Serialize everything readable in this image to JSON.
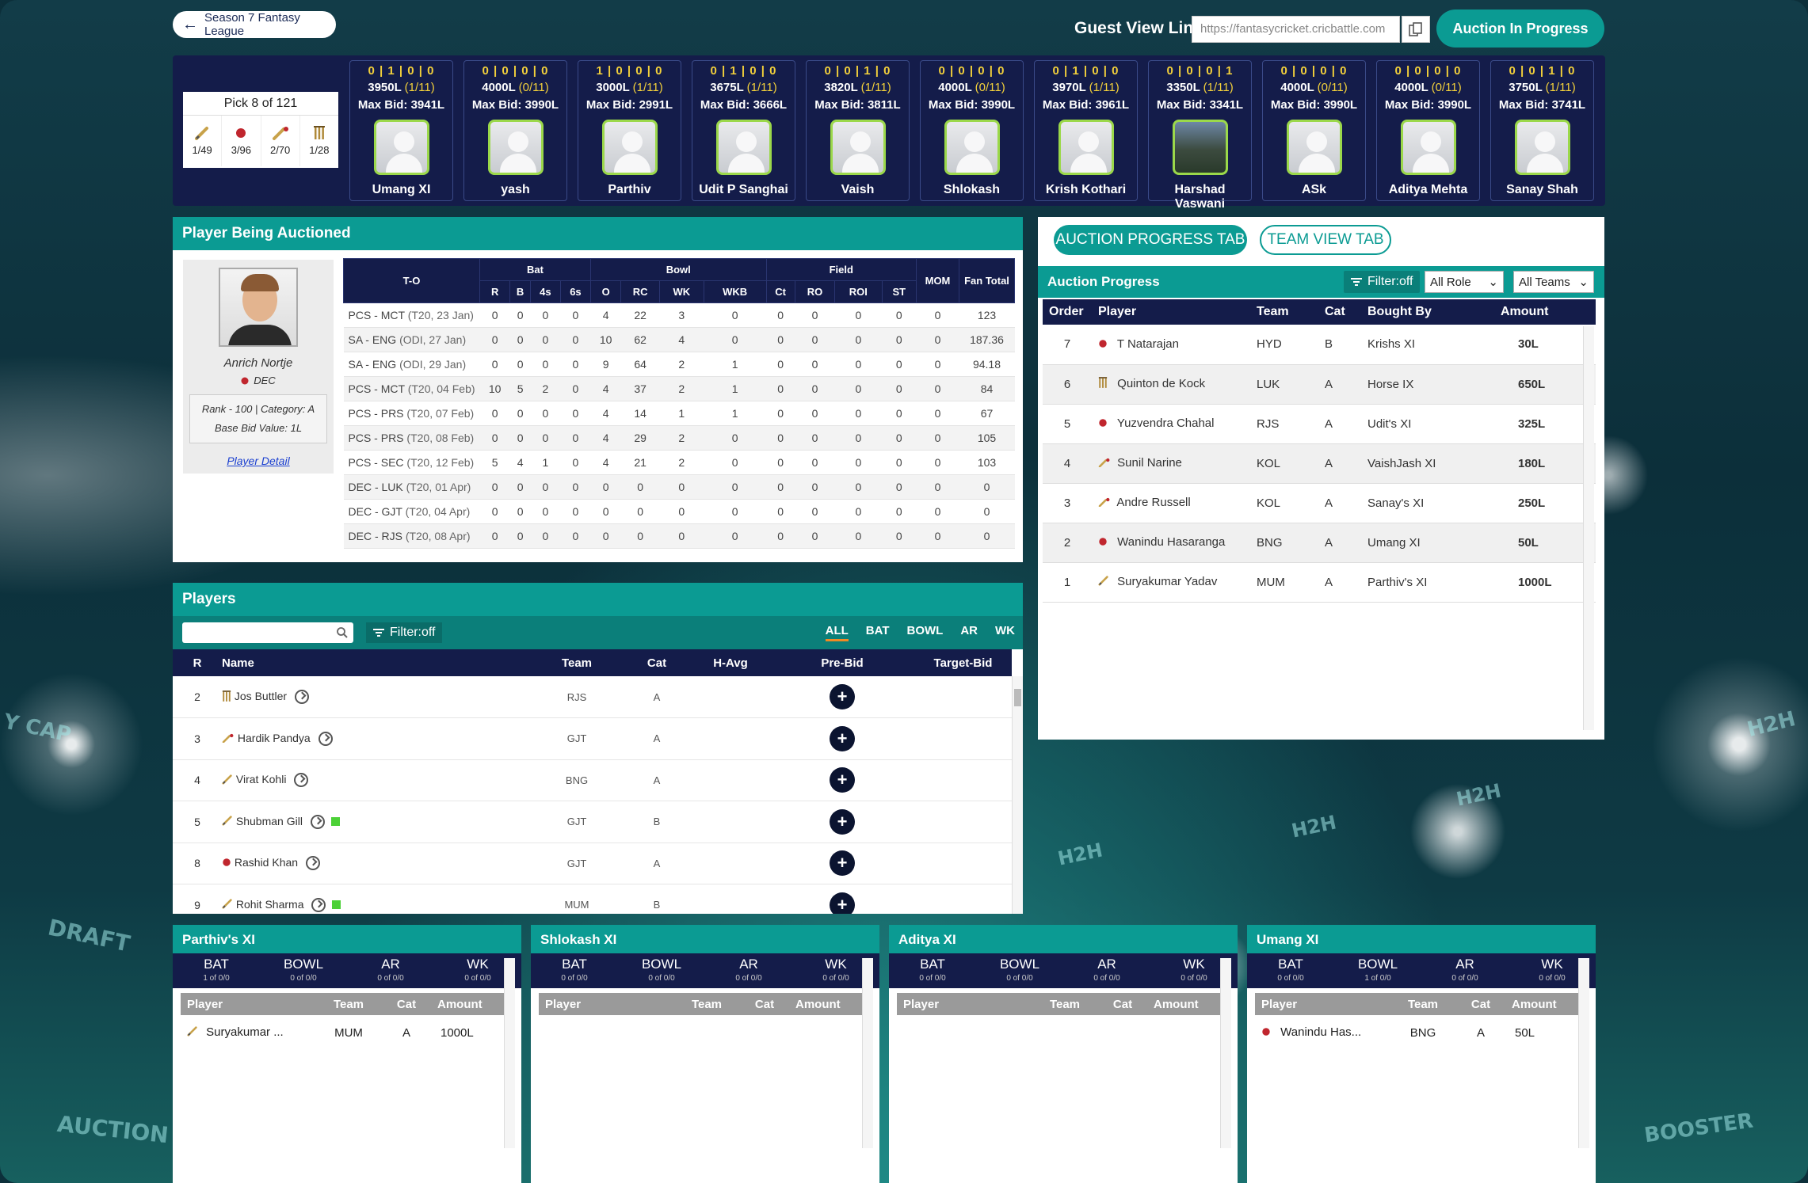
{
  "header": {
    "back_label": "Season 7 Fantasy League",
    "guest_label": "Guest View Link",
    "guest_link": "https://fantasycricket.cricbattle.com",
    "status_label": "Auction In Progress"
  },
  "pick": {
    "title": "Pick 8 of 121",
    "counts": [
      "1/49",
      "3/96",
      "2/70",
      "1/28"
    ]
  },
  "teams": [
    {
      "record": "0|1|0|0",
      "budget": "3950L",
      "slots": "(1/11)",
      "max_bid": "Max Bid: 3941L",
      "name": "Umang XI",
      "photo": false
    },
    {
      "record": "0|0|0|0",
      "budget": "4000L",
      "slots": "(0/11)",
      "max_bid": "Max Bid: 3990L",
      "name": "yash",
      "photo": false
    },
    {
      "record": "1|0|0|0",
      "budget": "3000L",
      "slots": "(1/11)",
      "max_bid": "Max Bid: 2991L",
      "name": "Parthiv",
      "photo": false
    },
    {
      "record": "0|1|0|0",
      "budget": "3675L",
      "slots": "(1/11)",
      "max_bid": "Max Bid: 3666L",
      "name": "Udit P Sanghai",
      "photo": false
    },
    {
      "record": "0|0|1|0",
      "budget": "3820L",
      "slots": "(1/11)",
      "max_bid": "Max Bid: 3811L",
      "name": "Vaish",
      "photo": false
    },
    {
      "record": "0|0|0|0",
      "budget": "4000L",
      "slots": "(0/11)",
      "max_bid": "Max Bid: 3990L",
      "name": "Shlokash",
      "photo": false
    },
    {
      "record": "0|1|0|0",
      "budget": "3970L",
      "slots": "(1/11)",
      "max_bid": "Max Bid: 3961L",
      "name": "Krish Kothari",
      "photo": false
    },
    {
      "record": "0|0|0|1",
      "budget": "3350L",
      "slots": "(1/11)",
      "max_bid": "Max Bid: 3341L",
      "name": "Harshad Vaswani",
      "photo": true
    },
    {
      "record": "0|0|0|0",
      "budget": "4000L",
      "slots": "(0/11)",
      "max_bid": "Max Bid: 3990L",
      "name": "ASk",
      "photo": false
    },
    {
      "record": "0|0|0|0",
      "budget": "4000L",
      "slots": "(0/11)",
      "max_bid": "Max Bid: 3990L",
      "name": "Aditya Mehta",
      "photo": false
    },
    {
      "record": "0|0|1|0",
      "budget": "3750L",
      "slots": "(1/11)",
      "max_bid": "Max Bid: 3741L",
      "name": "Sanay Shah",
      "photo": false
    }
  ],
  "auction_player": {
    "panel_title": "Player Being Auctioned",
    "name": "Anrich Nortje",
    "team": "DEC",
    "rank_line": "Rank - 100  |  Category: A",
    "base_bid": "Base Bid Value: 1L",
    "detail_link": "Player Detail"
  },
  "stats": {
    "headers": {
      "to": "T-O",
      "bat": "Bat",
      "bowl": "Bowl",
      "field": "Field",
      "mom": "MOM",
      "fan": "Fan Total"
    },
    "subheaders": [
      "R",
      "B",
      "4s",
      "6s",
      "O",
      "RC",
      "WK",
      "WKB",
      "Ct",
      "RO",
      "ROI",
      "ST"
    ],
    "rows": [
      {
        "match": "PCS - MCT",
        "detail": "(T20, 23 Jan)",
        "vals": [
          "0",
          "0",
          "0",
          "0",
          "4",
          "22",
          "3",
          "0",
          "0",
          "0",
          "0",
          "0",
          "0",
          "123"
        ]
      },
      {
        "match": "SA - ENG",
        "detail": "(ODI, 27 Jan)",
        "vals": [
          "0",
          "0",
          "0",
          "0",
          "10",
          "62",
          "4",
          "0",
          "0",
          "0",
          "0",
          "0",
          "0",
          "187.36"
        ]
      },
      {
        "match": "SA - ENG",
        "detail": "(ODI, 29 Jan)",
        "vals": [
          "0",
          "0",
          "0",
          "0",
          "9",
          "64",
          "2",
          "1",
          "0",
          "0",
          "0",
          "0",
          "0",
          "94.18"
        ]
      },
      {
        "match": "PCS - MCT",
        "detail": "(T20, 04 Feb)",
        "vals": [
          "10",
          "5",
          "2",
          "0",
          "4",
          "37",
          "2",
          "1",
          "0",
          "0",
          "0",
          "0",
          "0",
          "84"
        ]
      },
      {
        "match": "PCS - PRS",
        "detail": "(T20, 07 Feb)",
        "vals": [
          "0",
          "0",
          "0",
          "0",
          "4",
          "14",
          "1",
          "1",
          "0",
          "0",
          "0",
          "0",
          "0",
          "67"
        ]
      },
      {
        "match": "PCS - PRS",
        "detail": "(T20, 08 Feb)",
        "vals": [
          "0",
          "0",
          "0",
          "0",
          "4",
          "29",
          "2",
          "0",
          "0",
          "0",
          "0",
          "0",
          "0",
          "105"
        ]
      },
      {
        "match": "PCS - SEC",
        "detail": "(T20, 12 Feb)",
        "vals": [
          "5",
          "4",
          "1",
          "0",
          "4",
          "21",
          "2",
          "0",
          "0",
          "0",
          "0",
          "0",
          "0",
          "103"
        ]
      },
      {
        "match": "DEC - LUK",
        "detail": "(T20, 01 Apr)",
        "vals": [
          "0",
          "0",
          "0",
          "0",
          "0",
          "0",
          "0",
          "0",
          "0",
          "0",
          "0",
          "0",
          "0",
          "0"
        ]
      },
      {
        "match": "DEC - GJT",
        "detail": "(T20, 04 Apr)",
        "vals": [
          "0",
          "0",
          "0",
          "0",
          "0",
          "0",
          "0",
          "0",
          "0",
          "0",
          "0",
          "0",
          "0",
          "0"
        ]
      },
      {
        "match": "DEC - RJS",
        "detail": "(T20, 08 Apr)",
        "vals": [
          "0",
          "0",
          "0",
          "0",
          "0",
          "0",
          "0",
          "0",
          "0",
          "0",
          "0",
          "0",
          "0",
          "0"
        ]
      }
    ]
  },
  "progress": {
    "tab_progress": "AUCTION PROGRESS TAB",
    "tab_team": "TEAM VIEW TAB",
    "title": "Auction Progress",
    "filter": "Filter:off",
    "role_select": "All Role",
    "team_select": "All Teams",
    "headers": [
      "Order",
      "Player",
      "Team",
      "Cat",
      "Bought By",
      "Amount"
    ],
    "rows": [
      {
        "order": "7",
        "role": "bowl",
        "player": "T Natarajan",
        "team": "HYD",
        "cat": "B",
        "by": "Krishs XI",
        "amount": "30L"
      },
      {
        "order": "6",
        "role": "wk",
        "player": "Quinton de Kock",
        "team": "LUK",
        "cat": "A",
        "by": "Horse IX",
        "amount": "650L"
      },
      {
        "order": "5",
        "role": "bowl",
        "player": "Yuzvendra Chahal",
        "team": "RJS",
        "cat": "A",
        "by": "Udit's XI",
        "amount": "325L"
      },
      {
        "order": "4",
        "role": "ar",
        "player": "Sunil Narine",
        "team": "KOL",
        "cat": "A",
        "by": "VaishJash XI",
        "amount": "180L"
      },
      {
        "order": "3",
        "role": "ar",
        "player": "Andre Russell",
        "team": "KOL",
        "cat": "A",
        "by": "Sanay's XI",
        "amount": "250L"
      },
      {
        "order": "2",
        "role": "bowl",
        "player": "Wanindu Hasaranga",
        "team": "BNG",
        "cat": "A",
        "by": "Umang XI",
        "amount": "50L"
      },
      {
        "order": "1",
        "role": "bat",
        "player": "Suryakumar Yadav",
        "team": "MUM",
        "cat": "A",
        "by": "Parthiv's XI",
        "amount": "1000L"
      }
    ]
  },
  "players": {
    "title": "Players",
    "filter": "Filter:off",
    "roles": [
      "ALL",
      "BAT",
      "BOWL",
      "AR",
      "WK"
    ],
    "headers": [
      "R",
      "Name",
      "Team",
      "Cat",
      "H-Avg",
      "Pre-Bid",
      "Target-Bid"
    ],
    "rows": [
      {
        "rank": "2",
        "role": "wk",
        "name": "Jos Buttler",
        "team": "RJS",
        "cat": "A",
        "flag": false
      },
      {
        "rank": "3",
        "role": "ar",
        "name": "Hardik Pandya",
        "team": "GJT",
        "cat": "A",
        "flag": false
      },
      {
        "rank": "4",
        "role": "bat",
        "name": "Virat Kohli",
        "team": "BNG",
        "cat": "A",
        "flag": false
      },
      {
        "rank": "5",
        "role": "bat",
        "name": "Shubman Gill",
        "team": "GJT",
        "cat": "B",
        "flag": true
      },
      {
        "rank": "8",
        "role": "bowl",
        "name": "Rashid Khan",
        "team": "GJT",
        "cat": "A",
        "flag": false
      },
      {
        "rank": "9",
        "role": "bat",
        "name": "Rohit Sharma",
        "team": "MUM",
        "cat": "B",
        "flag": true
      }
    ]
  },
  "squads": [
    {
      "title": "Parthiv's XI",
      "counts": [
        "1 of 0/0",
        "0 of 0/0",
        "0 of 0/0",
        "0 of 0/0"
      ],
      "players": [
        {
          "role": "bat",
          "name": "Suryakumar ...",
          "team": "MUM",
          "cat": "A",
          "amount": "1000L"
        }
      ]
    },
    {
      "title": "Shlokash XI",
      "counts": [
        "0 of 0/0",
        "0 of 0/0",
        "0 of 0/0",
        "0 of 0/0"
      ],
      "players": []
    },
    {
      "title": "Aditya XI",
      "counts": [
        "0 of 0/0",
        "0 of 0/0",
        "0 of 0/0",
        "0 of 0/0"
      ],
      "players": []
    },
    {
      "title": "Umang XI",
      "counts": [
        "0 of 0/0",
        "1 of 0/0",
        "0 of 0/0",
        "0 of 0/0"
      ],
      "players": [
        {
          "role": "bowl",
          "name": "Wanindu Has...",
          "team": "BNG",
          "cat": "A",
          "amount": "50L"
        }
      ]
    }
  ],
  "squad_labels": {
    "roles": [
      "BAT",
      "BOWL",
      "AR",
      "WK"
    ],
    "headers": [
      "Player",
      "Team",
      "Cat",
      "Amount"
    ]
  },
  "background_words": [
    "Y CAP",
    "DRAFT",
    "AUCTION",
    "H2H",
    "H2H",
    "H2H",
    "H2H",
    "BOOSTER"
  ],
  "colors": {
    "teal": "#0b9b93",
    "navy": "#141c4a",
    "gold": "#f2d03b"
  }
}
